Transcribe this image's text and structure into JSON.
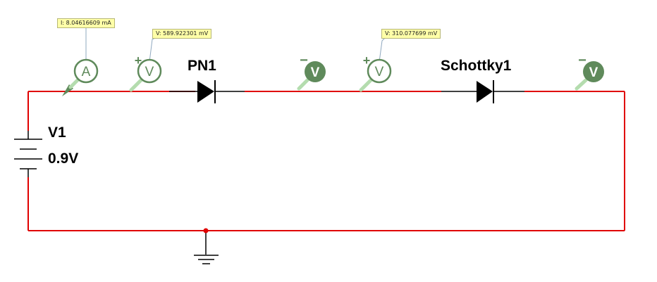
{
  "components": {
    "source": {
      "name": "V1",
      "value": "0.9V"
    },
    "diode1": {
      "name": "PN1"
    },
    "diode2": {
      "name": "Schottky1"
    }
  },
  "probes": {
    "ammeter": {
      "symbol": "A",
      "reading": "I: 8.04616609 mA"
    },
    "volt1": {
      "symbol": "V",
      "polarity": "+",
      "reading": "V: 589.922301 mV"
    },
    "volt2": {
      "symbol": "V",
      "polarity": "−"
    },
    "volt3": {
      "symbol": "V",
      "polarity": "+",
      "reading": "V: 310.077699 mV"
    },
    "volt4": {
      "symbol": "V",
      "polarity": "−"
    }
  },
  "colors": {
    "wire": "#e00000",
    "probe_fill": "#5f8a5b",
    "probe_stroke": "#5f8a5b",
    "probe_pin": "#b4dcae",
    "label_bg": "#ffffa8"
  }
}
